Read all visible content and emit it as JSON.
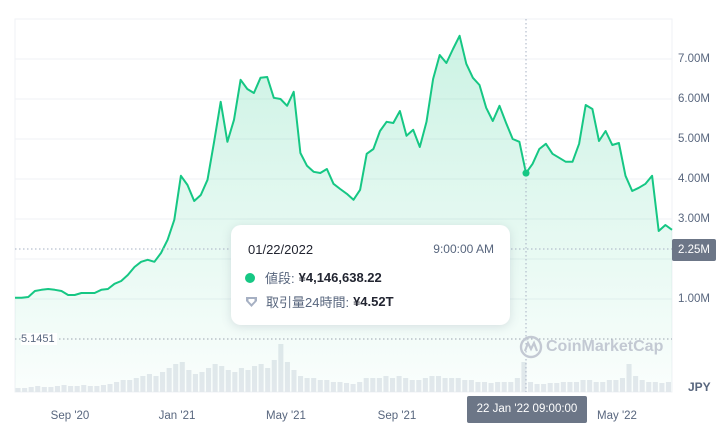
{
  "chart_data": {
    "type": "area",
    "title": "",
    "xlabel": "",
    "ylabel": "",
    "currency": "JPY",
    "ylim": [
      0,
      8000000
    ],
    "y_ticks": [
      "1.00M",
      "2.00M",
      "3.00M",
      "4.00M",
      "5.00M",
      "6.00M",
      "7.00M"
    ],
    "x_ticks": [
      "Sep '20",
      "Jan '21",
      "May '21",
      "Sep '21",
      "Jan '22",
      "May '22"
    ],
    "grid": true,
    "line_color": "#16c784",
    "x": [
      "2020-08-01",
      "2020-08-08",
      "2020-08-15",
      "2020-08-22",
      "2020-08-29",
      "2020-09-05",
      "2020-09-12",
      "2020-09-19",
      "2020-09-26",
      "2020-10-03",
      "2020-10-10",
      "2020-10-17",
      "2020-10-24",
      "2020-10-31",
      "2020-11-07",
      "2020-11-14",
      "2020-11-21",
      "2020-11-28",
      "2020-12-05",
      "2020-12-12",
      "2020-12-19",
      "2020-12-26",
      "2021-01-02",
      "2021-01-09",
      "2021-01-16",
      "2021-01-23",
      "2021-01-30",
      "2021-02-06",
      "2021-02-13",
      "2021-02-20",
      "2021-02-27",
      "2021-03-06",
      "2021-03-13",
      "2021-03-20",
      "2021-03-27",
      "2021-04-03",
      "2021-04-10",
      "2021-04-17",
      "2021-04-24",
      "2021-05-01",
      "2021-05-08",
      "2021-05-15",
      "2021-05-22",
      "2021-05-29",
      "2021-06-05",
      "2021-06-12",
      "2021-06-19",
      "2021-06-26",
      "2021-07-03",
      "2021-07-10",
      "2021-07-17",
      "2021-07-24",
      "2021-07-31",
      "2021-08-07",
      "2021-08-14",
      "2021-08-21",
      "2021-08-28",
      "2021-09-04",
      "2021-09-11",
      "2021-09-18",
      "2021-09-25",
      "2021-10-02",
      "2021-10-09",
      "2021-10-16",
      "2021-10-23",
      "2021-10-30",
      "2021-11-06",
      "2021-11-13",
      "2021-11-20",
      "2021-11-27",
      "2021-12-04",
      "2021-12-11",
      "2021-12-18",
      "2021-12-25",
      "2022-01-01",
      "2022-01-08",
      "2022-01-15",
      "2022-01-22",
      "2022-01-29",
      "2022-02-05",
      "2022-02-12",
      "2022-02-19",
      "2022-02-26",
      "2022-03-05",
      "2022-03-12",
      "2022-03-19",
      "2022-03-26",
      "2022-04-02",
      "2022-04-09",
      "2022-04-16",
      "2022-04-23",
      "2022-04-30",
      "2022-05-07",
      "2022-05-14",
      "2022-05-21",
      "2022-05-28",
      "2022-06-04",
      "2022-06-11",
      "2022-06-18",
      "2022-06-25"
    ],
    "series": [
      {
        "values": [
          1.03,
          1.03,
          1.05,
          1.2,
          1.23,
          1.25,
          1.23,
          1.2,
          1.1,
          1.1,
          1.15,
          1.15,
          1.15,
          1.23,
          1.25,
          1.38,
          1.45,
          1.6,
          1.8,
          1.93,
          1.98,
          1.93,
          2.15,
          2.48,
          2.98,
          4.08,
          3.85,
          3.45,
          3.6,
          3.98,
          4.93,
          5.93,
          4.93,
          5.48,
          6.48,
          6.25,
          6.15,
          6.53,
          6.55,
          6.03,
          6.0,
          5.83,
          6.18,
          4.65,
          4.33,
          4.18,
          4.15,
          4.25,
          3.88,
          3.75,
          3.63,
          3.48,
          3.73,
          4.63,
          4.75,
          5.2,
          5.43,
          5.4,
          5.7,
          5.08,
          5.23,
          4.8,
          5.43,
          6.5,
          7.1,
          6.9,
          7.25,
          7.58,
          6.88,
          6.53,
          6.35,
          5.78,
          5.45,
          5.83,
          5.4,
          5.0,
          4.93,
          4.1466,
          4.38,
          4.75,
          4.88,
          4.63,
          4.53,
          4.43,
          4.43,
          4.88,
          5.85,
          5.75,
          4.95,
          5.2,
          4.85,
          4.9,
          4.08,
          3.7,
          3.78,
          3.88,
          4.08,
          2.7,
          2.85,
          2.73
        ],
        "unit": "M JPY"
      },
      {
        "name": "取引量24時間",
        "type": "bar",
        "values": [
          4,
          4,
          5,
          6,
          5,
          5,
          6,
          7,
          6,
          6,
          7,
          6,
          6,
          7,
          8,
          10,
          12,
          12,
          14,
          16,
          18,
          16,
          20,
          24,
          28,
          30,
          22,
          18,
          20,
          24,
          28,
          26,
          22,
          20,
          24,
          22,
          26,
          28,
          24,
          32,
          48,
          30,
          22,
          16,
          14,
          14,
          12,
          12,
          10,
          10,
          9,
          8,
          10,
          14,
          14,
          14,
          16,
          14,
          16,
          14,
          12,
          12,
          14,
          16,
          16,
          14,
          14,
          14,
          12,
          12,
          10,
          10,
          9,
          10,
          10,
          10,
          14,
          30,
          10,
          8,
          8,
          9,
          9,
          10,
          10,
          10,
          12,
          12,
          10,
          10,
          12,
          12,
          14,
          28,
          16,
          12,
          10,
          10,
          9,
          10
        ]
      }
    ],
    "volume_reference_label": "5.1451",
    "crosshair": {
      "price_label": "2.25M",
      "date_label": "22 Jan '22 09:00:00"
    },
    "tooltip": {
      "date": "01/22/2022",
      "time": "9:00:00 AM",
      "price_label": "値段:",
      "price_value": "¥4,146,638.22",
      "volume_label": "取引量24時間:",
      "volume_value": "¥4.52T"
    },
    "watermark": "CoinMarketCap"
  }
}
